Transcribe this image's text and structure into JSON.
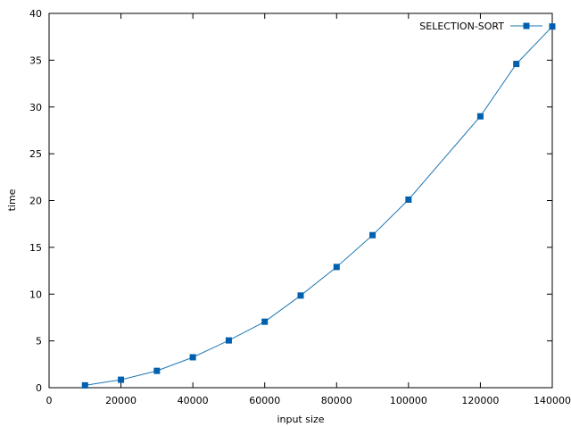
{
  "chart_data": {
    "type": "line",
    "title": "",
    "xlabel": "input size",
    "ylabel": "time",
    "xlim": [
      0,
      140000
    ],
    "ylim": [
      0,
      40
    ],
    "xticks": [
      "0",
      "20000",
      "40000",
      "60000",
      "80000",
      "100000",
      "120000",
      "140000"
    ],
    "yticks": [
      "0",
      "5",
      "10",
      "15",
      "20",
      "25",
      "30",
      "35",
      "40"
    ],
    "grid": false,
    "legend_position": "top-right",
    "line_color": "#1f77b4",
    "marker_color": "#0060ad",
    "series": [
      {
        "name": "SELECTION-SORT",
        "x": [
          10000,
          20000,
          30000,
          40000,
          50000,
          60000,
          70000,
          80000,
          90000,
          100000,
          120000,
          130000,
          140000
        ],
        "y": [
          0.25,
          0.85,
          1.8,
          3.25,
          5.05,
          7.05,
          9.85,
          12.9,
          16.3,
          20.1,
          29.0,
          34.6,
          38.6
        ]
      }
    ]
  }
}
